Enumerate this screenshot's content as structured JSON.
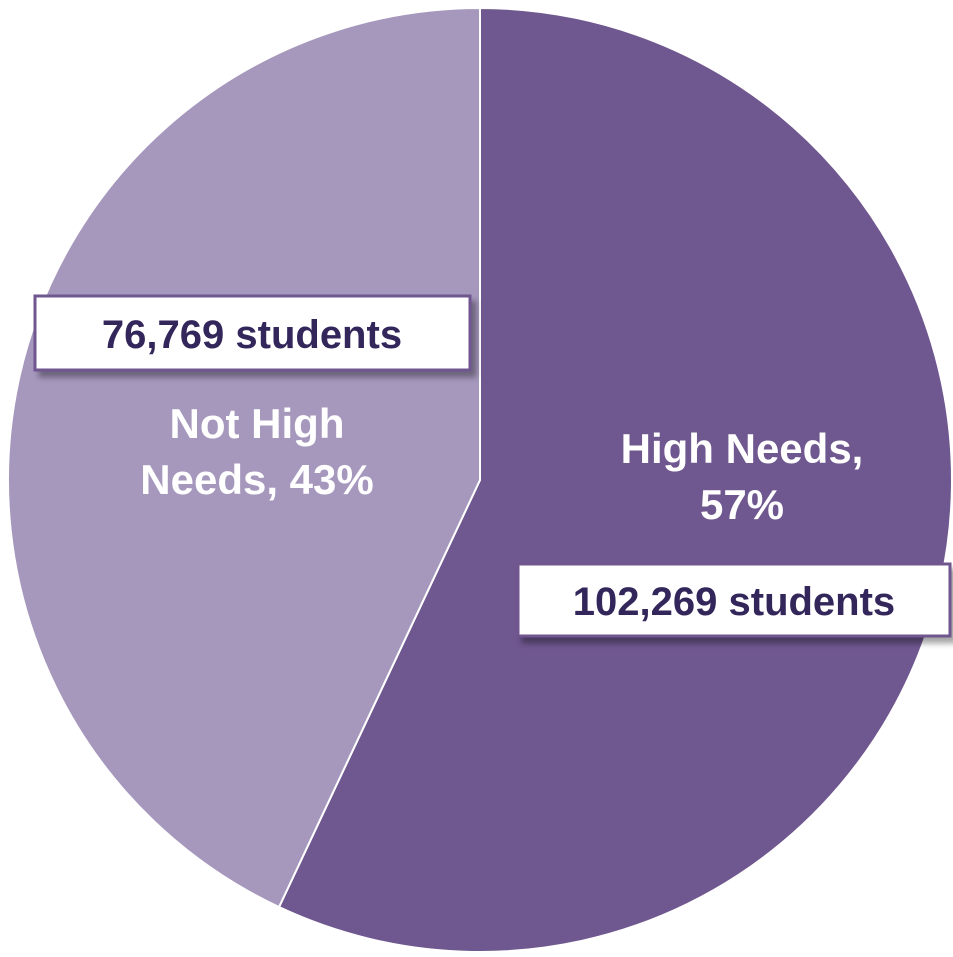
{
  "chart_data": {
    "type": "pie",
    "title": "",
    "start_angle_deg": 0,
    "direction": "clockwise",
    "slice_border_color": "#ffffff",
    "slices": [
      {
        "label": "High Needs",
        "percent": 57,
        "value": 102269,
        "slice_label_lines": [
          "High Needs,",
          "57%"
        ],
        "callout": "102,269 students",
        "color": "#6f578f"
      },
      {
        "label": "Not High Needs",
        "percent": 43,
        "value": 76769,
        "slice_label_lines": [
          "Not High",
          "Needs, 43%"
        ],
        "callout": "76,769 students",
        "color": "#a698bd"
      }
    ]
  }
}
